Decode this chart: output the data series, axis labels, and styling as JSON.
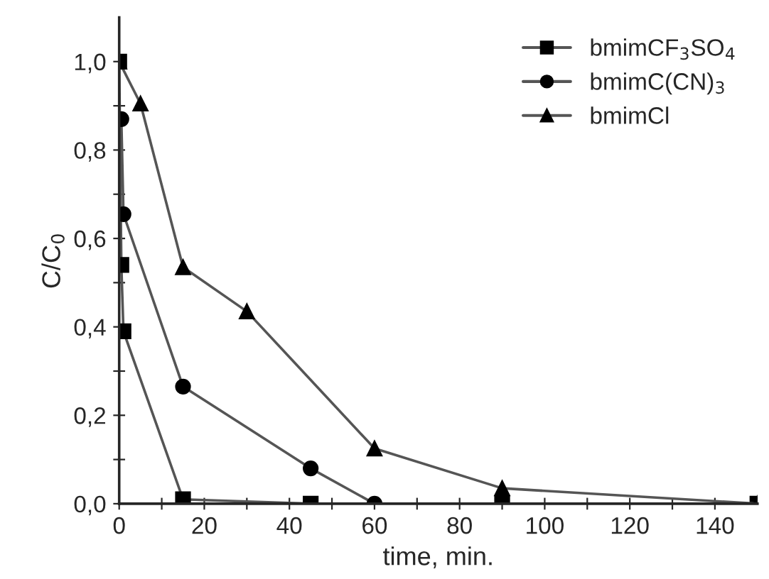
{
  "chart_data": {
    "type": "line",
    "xlabel": "time, min.",
    "ylabel": "C/C$_{0}$",
    "series": [
      {
        "name": "bmimCF$_{3}$SO$_{4}$",
        "color": "#555555",
        "marker": "square",
        "x": [
          0,
          0.5,
          1,
          15,
          45,
          90,
          150
        ],
        "values": [
          1.0,
          0.54,
          0.39,
          0.01,
          0.0,
          0.0,
          0.0
        ]
      },
      {
        "name": "bmimC(CN)$_{3}$",
        "color": "#555555",
        "marker": "circle",
        "x": [
          0.5,
          1,
          15,
          45,
          60
        ],
        "values": [
          0.87,
          0.655,
          0.265,
          0.08,
          0.0
        ]
      },
      {
        "name": "bmimCl",
        "color": "#555555",
        "marker": "triangle",
        "x": [
          0,
          5,
          15,
          30,
          60,
          90,
          150
        ],
        "values": [
          1.0,
          0.905,
          0.535,
          0.435,
          0.125,
          0.035,
          0.0
        ]
      }
    ],
    "xlim": [
      0,
      150
    ],
    "ylim": [
      0,
      1.1
    ],
    "xticks": [
      0,
      {
        "value": 10,
        "label": null
      },
      20,
      {
        "value": 30,
        "label": null
      },
      40,
      {
        "value": 50,
        "label": null
      },
      60,
      {
        "value": 70,
        "label": null
      },
      80,
      {
        "value": 90,
        "label": null
      },
      100,
      {
        "value": 110,
        "label": null
      },
      120,
      {
        "value": 130,
        "label": null
      },
      140
    ],
    "yticks": [
      {
        "value": 0,
        "label": "0,0"
      },
      {
        "value": 0.1,
        "label": null
      },
      {
        "value": 0.2,
        "label": "0,2"
      },
      {
        "value": 0.3,
        "label": null
      },
      {
        "value": 0.4,
        "label": "0,4"
      },
      {
        "value": 0.5,
        "label": null
      },
      {
        "value": 0.6,
        "label": "0,6"
      },
      {
        "value": 0.7,
        "label": null
      },
      {
        "value": 0.8,
        "label": "0,8"
      },
      {
        "value": 0.9,
        "label": null
      },
      {
        "value": 1.0,
        "label": "1,0"
      }
    ],
    "grid": false,
    "legend": "top right",
    "line_style": "solid"
  }
}
